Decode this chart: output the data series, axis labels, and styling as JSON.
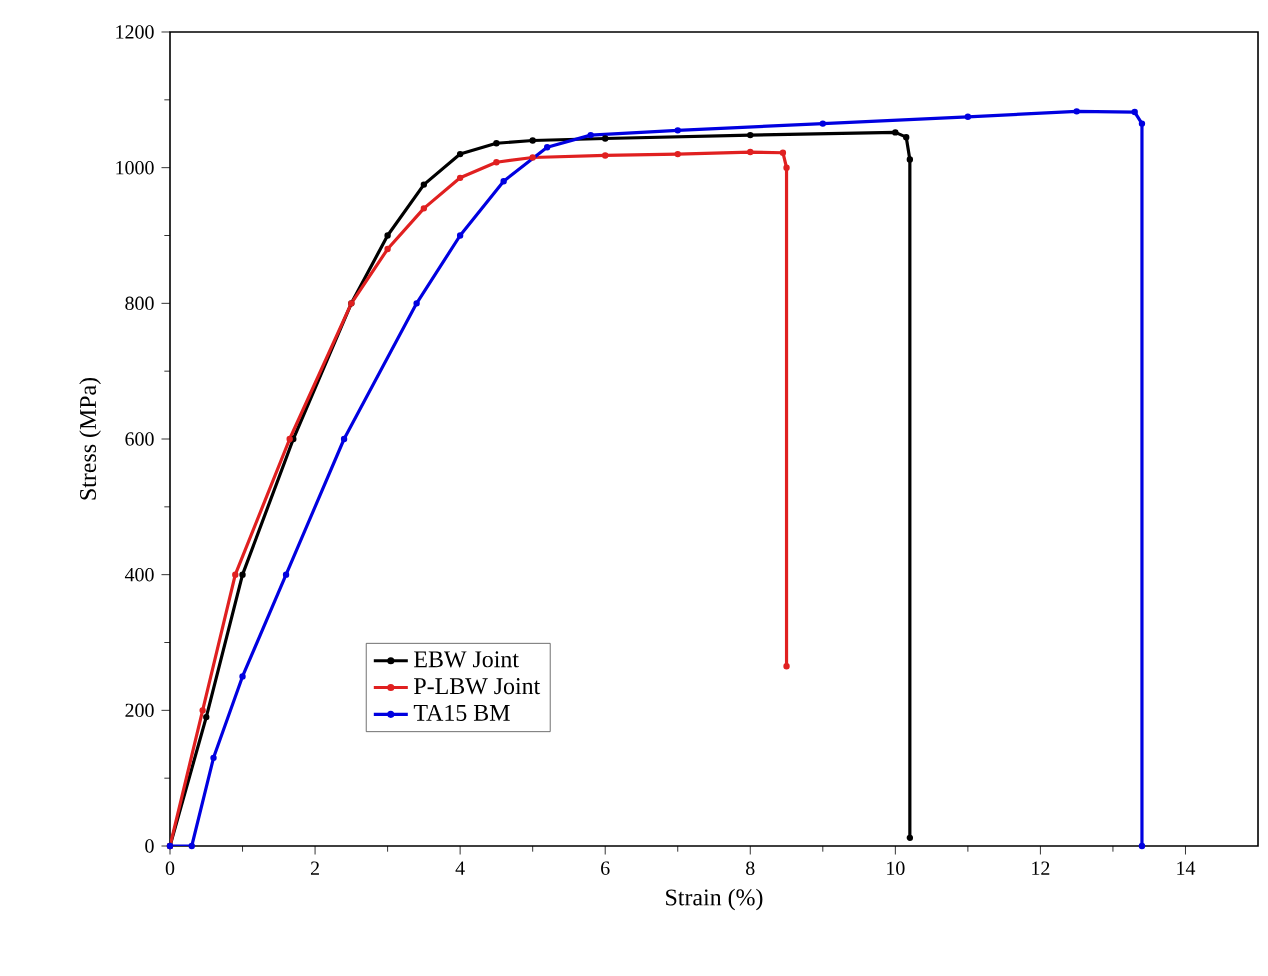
{
  "chart_data": {
    "type": "line",
    "xlabel": "Strain (%)",
    "ylabel": "Stress (MPa)",
    "xlim": [
      0,
      15
    ],
    "ylim": [
      0,
      1200
    ],
    "xticks": [
      0,
      2,
      4,
      6,
      8,
      10,
      12,
      14
    ],
    "yticks": [
      0,
      200,
      400,
      600,
      800,
      1000,
      1200
    ],
    "legend": "bottom left",
    "marker": "circle",
    "grid": false,
    "series": [
      {
        "name": "EBW Joint",
        "color": "#000000",
        "x": [
          0,
          0.5,
          1,
          1.7,
          2.5,
          3,
          3.5,
          4,
          4.5,
          5,
          6,
          8,
          10,
          10.15,
          10.2,
          10.2
        ],
        "values": [
          0,
          190,
          400,
          600,
          800,
          900,
          975,
          1020,
          1036,
          1040,
          1043,
          1048,
          1052,
          1045,
          1012,
          12
        ]
      },
      {
        "name": "P-LBW Joint",
        "color": "#e02020",
        "x": [
          0,
          0.45,
          0.9,
          1.65,
          2.5,
          3,
          3.5,
          4,
          4.5,
          5,
          6,
          7,
          8,
          8.45,
          8.5,
          8.5
        ],
        "values": [
          0,
          200,
          400,
          600,
          800,
          880,
          940,
          985,
          1008,
          1015,
          1018,
          1020,
          1023,
          1022,
          1000,
          265
        ]
      },
      {
        "name": "TA15 BM",
        "color": "#0000e0",
        "x": [
          0,
          0.3,
          0.6,
          1,
          1.6,
          2.4,
          3.4,
          4,
          4.6,
          5.2,
          5.8,
          7,
          9,
          11,
          12.5,
          13.3,
          13.4,
          13.4
        ],
        "values": [
          0,
          0,
          130,
          250,
          400,
          600,
          800,
          900,
          980,
          1030,
          1048,
          1055,
          1065,
          1075,
          1083,
          1082,
          1065,
          0
        ]
      }
    ]
  }
}
